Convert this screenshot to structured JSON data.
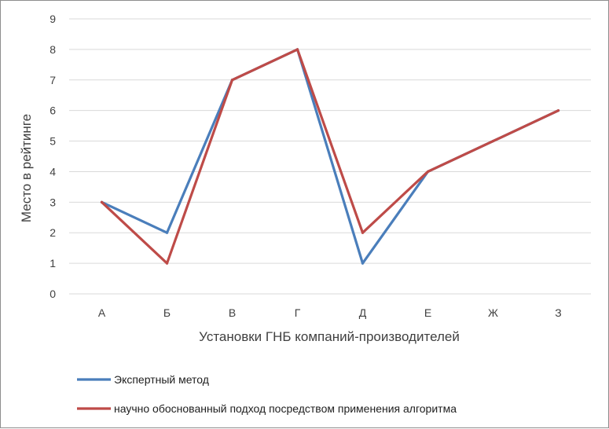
{
  "chart_data": {
    "type": "line",
    "categories": [
      "А",
      "Б",
      "В",
      "Г",
      "Д",
      "Е",
      "Ж",
      "З"
    ],
    "series": [
      {
        "name": "Экспертный метод",
        "color": "#4a7ebb",
        "values": [
          3,
          2,
          7,
          8,
          1,
          4,
          5,
          6
        ]
      },
      {
        "name": "научно обоснованный подход посредством применения алгоритма",
        "color": "#be4b48",
        "values": [
          3,
          1,
          7,
          8,
          2,
          4,
          5,
          6
        ]
      }
    ],
    "xlabel": "Установки ГНБ компаний-производителей",
    "ylabel": "Место в рейтинге",
    "ylim": [
      0,
      9
    ],
    "yticks": [
      0,
      1,
      2,
      3,
      4,
      5,
      6,
      7,
      8,
      9
    ],
    "grid": true,
    "gridColor": "#d9d9d9",
    "legend": "bottom"
  }
}
